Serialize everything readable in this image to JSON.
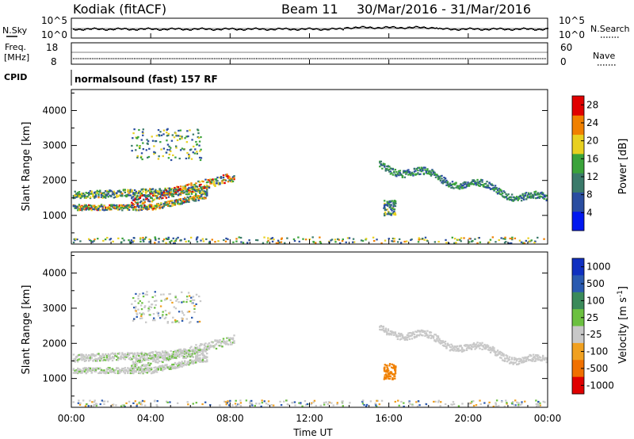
{
  "header": {
    "station": "Kodiak (fitACF)",
    "beam": "Beam 11",
    "dates": "30/Mar/2016 - 31/Mar/2016"
  },
  "top_panel": {
    "left_label": "N.Sky",
    "left_tick_top": "10^5",
    "left_tick_bottom": "10^0",
    "right_label": "N.Search",
    "right_tick_top": "10^5",
    "right_tick_bottom": "10^0"
  },
  "freq_panel": {
    "left_label_1": "Freq.",
    "left_label_2": "[MHz]",
    "left_tick_top": "18",
    "left_tick_bottom": "8",
    "right_label": "Nave",
    "right_tick_top": "60",
    "right_tick_bottom": "0"
  },
  "cpid": {
    "label": "CPID",
    "mode": "normalsound (fast) 157 RF"
  },
  "chart_data": [
    {
      "type": "heatmap",
      "title": "",
      "xlabel": "Time UT",
      "ylabel": "Slant Range [km]",
      "x_ticks": [
        "00:00",
        "04:00",
        "08:00",
        "12:00",
        "16:00",
        "20:00",
        "00:00"
      ],
      "xlim_hours": [
        0,
        24
      ],
      "y_ticks": [
        1000,
        2000,
        3000,
        4000
      ],
      "ylim": [
        180,
        4600
      ],
      "colorbar": {
        "label": "Power [dB]",
        "ticks": [
          "4",
          "8",
          "12",
          "16",
          "20",
          "24",
          "28"
        ],
        "range": [
          0,
          30
        ],
        "colors": [
          "#0018f0",
          "#2a4da0",
          "#3a7a6a",
          "#3aa33a",
          "#e8d020",
          "#f08000",
          "#e00000"
        ]
      },
      "scatter_bands": [
        {
          "t_start": 0.0,
          "t_end": 6.5,
          "range_start": 1250,
          "range_end": 1700,
          "power": "mixed"
        },
        {
          "t_start": 3.0,
          "t_end": 8.0,
          "range_start": 1400,
          "range_end": 2200,
          "power": "high"
        },
        {
          "t_start": 15.5,
          "t_end": 24.0,
          "range_start": 2450,
          "range_end": 1450,
          "power": "low"
        }
      ]
    },
    {
      "type": "heatmap",
      "title": "",
      "xlabel": "Time UT",
      "ylabel": "Slant Range [km]",
      "x_ticks": [
        "00:00",
        "04:00",
        "08:00",
        "12:00",
        "16:00",
        "20:00",
        "00:00"
      ],
      "xlim_hours": [
        0,
        24
      ],
      "y_ticks": [
        1000,
        2000,
        3000,
        4000
      ],
      "ylim": [
        180,
        4600
      ],
      "colorbar": {
        "label": "Velocity [m s^-1]",
        "ticks": [
          "1000",
          "500",
          "100",
          "25",
          "-25",
          "-100",
          "-500",
          "-1000"
        ],
        "colors": [
          "#1030c0",
          "#2a5ab0",
          "#3a8a5a",
          "#6cc040",
          "#c8c8c8",
          "#f0a020",
          "#f07000",
          "#e00000"
        ]
      }
    }
  ]
}
